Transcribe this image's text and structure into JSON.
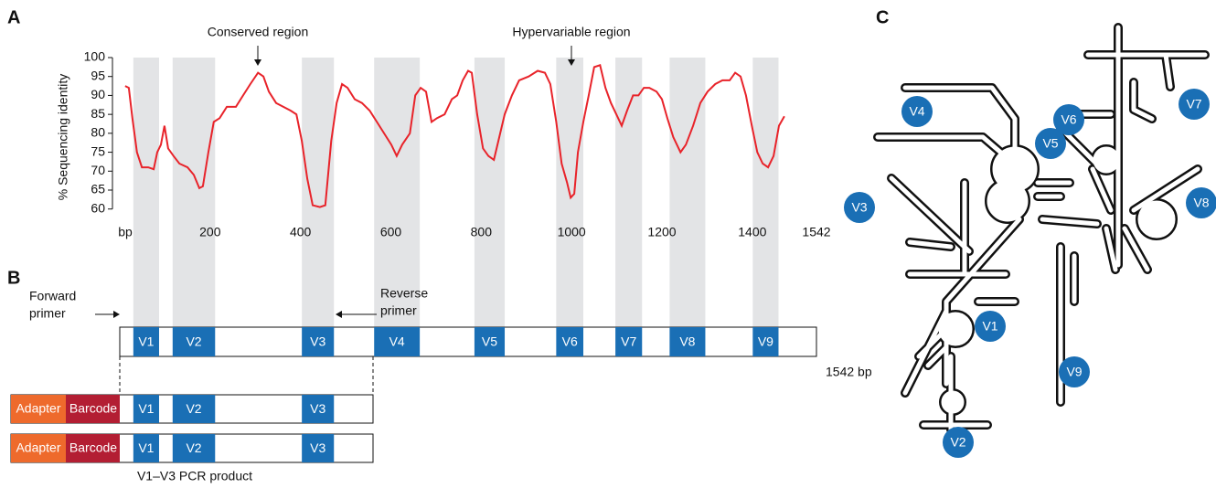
{
  "panel_labels": [
    "A",
    "B",
    "C"
  ],
  "chart_data": {
    "type": "line",
    "ylabel": "% Sequencing identity",
    "xlim": [
      0,
      1542
    ],
    "xticks": [
      {
        "value": 0,
        "label": "bp"
      },
      200,
      400,
      600,
      800,
      1000,
      1200,
      1400,
      1542
    ],
    "ylim": [
      58,
      100
    ],
    "yticks": [
      60,
      65,
      70,
      75,
      80,
      85,
      90,
      95,
      100
    ],
    "x": [
      12,
      20,
      28,
      38,
      49,
      63,
      75,
      83,
      91,
      99,
      107,
      119,
      132,
      150,
      164,
      176,
      184,
      196,
      208,
      221,
      237,
      257,
      273,
      289,
      306,
      318,
      330,
      346,
      362,
      378,
      391,
      403,
      415,
      427,
      443,
      455,
      468,
      480,
      492,
      504,
      520,
      536,
      553,
      569,
      585,
      601,
      613,
      625,
      642,
      654,
      666,
      678,
      690,
      702,
      719,
      735,
      747,
      759,
      771,
      779,
      791,
      804,
      816,
      828,
      840,
      852,
      868,
      884,
      905,
      925,
      941,
      953,
      966,
      978,
      990,
      998,
      1006,
      1014,
      1026,
      1038,
      1050,
      1063,
      1075,
      1087,
      1099,
      1111,
      1123,
      1136,
      1148,
      1160,
      1172,
      1188,
      1200,
      1212,
      1225,
      1241,
      1253,
      1269,
      1285,
      1301,
      1318,
      1334,
      1350,
      1362,
      1374,
      1386,
      1399,
      1411,
      1423,
      1435,
      1447,
      1459,
      1471
    ],
    "series": [
      {
        "color": "#e8232a",
        "values": [
          92.5,
          92,
          84,
          75,
          71,
          71,
          70.5,
          75,
          77,
          82,
          76,
          74,
          72,
          71,
          69,
          65.5,
          66,
          75,
          83,
          84,
          87,
          87,
          90,
          93,
          96,
          95,
          91,
          88,
          87,
          86,
          85,
          78,
          68,
          61,
          60.5,
          61,
          78,
          88,
          93,
          92,
          89,
          88,
          86,
          83,
          80,
          77,
          74,
          77,
          80,
          90,
          92,
          91,
          83,
          84,
          85,
          89,
          90,
          94,
          96.5,
          96,
          85,
          76,
          74,
          73,
          79,
          85,
          90,
          94,
          95,
          96.5,
          96,
          93,
          83,
          72,
          67,
          63,
          64,
          75,
          83,
          90,
          97.5,
          98,
          92,
          88,
          85,
          82,
          86,
          90,
          90,
          92,
          92,
          91,
          89,
          84,
          79,
          75,
          77,
          82,
          88,
          91,
          93,
          94,
          94,
          96,
          95,
          90,
          82,
          75,
          72,
          71,
          74,
          82,
          84.5
        ]
      }
    ],
    "regions": [
      {
        "label": "V1",
        "start": 30,
        "end": 87
      },
      {
        "label": "V2",
        "start": 117,
        "end": 211
      },
      {
        "label": "V3",
        "start": 403,
        "end": 474
      },
      {
        "label": "V4",
        "start": 563,
        "end": 664
      },
      {
        "label": "V5",
        "start": 785,
        "end": 852
      },
      {
        "label": "V6",
        "start": 966,
        "end": 1026
      },
      {
        "label": "V7",
        "start": 1097,
        "end": 1156
      },
      {
        "label": "V8",
        "start": 1217,
        "end": 1296
      },
      {
        "label": "V9",
        "start": 1401,
        "end": 1458
      }
    ],
    "annotations": [
      "Conserved region",
      "Hypervariable region"
    ]
  },
  "panel_b": {
    "forward_primer": [
      "Forward",
      "primer"
    ],
    "reverse_primer": [
      "Reverse",
      "primer"
    ],
    "length_label": "1542 bp",
    "adapter": "Adapter",
    "barcode": "Barcode",
    "product_label": "V1–V3 PCR product"
  }
}
